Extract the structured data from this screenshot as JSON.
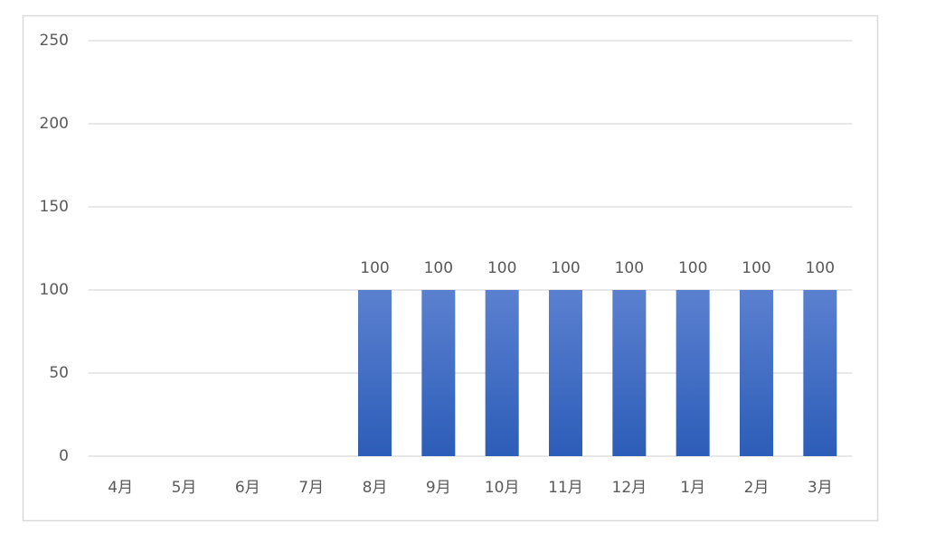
{
  "chart_data": {
    "type": "bar",
    "categories": [
      "4月",
      "5月",
      "6月",
      "7月",
      "8月",
      "9月",
      "10月",
      "11月",
      "12月",
      "1月",
      "2月",
      "3月"
    ],
    "values": [
      null,
      null,
      null,
      null,
      100,
      100,
      100,
      100,
      100,
      100,
      100,
      100
    ],
    "color": "#4472c4",
    "ylim": [
      0,
      250
    ],
    "yticks": [
      0,
      50,
      100,
      150,
      200,
      250
    ],
    "grid": true,
    "data_labels": true
  }
}
